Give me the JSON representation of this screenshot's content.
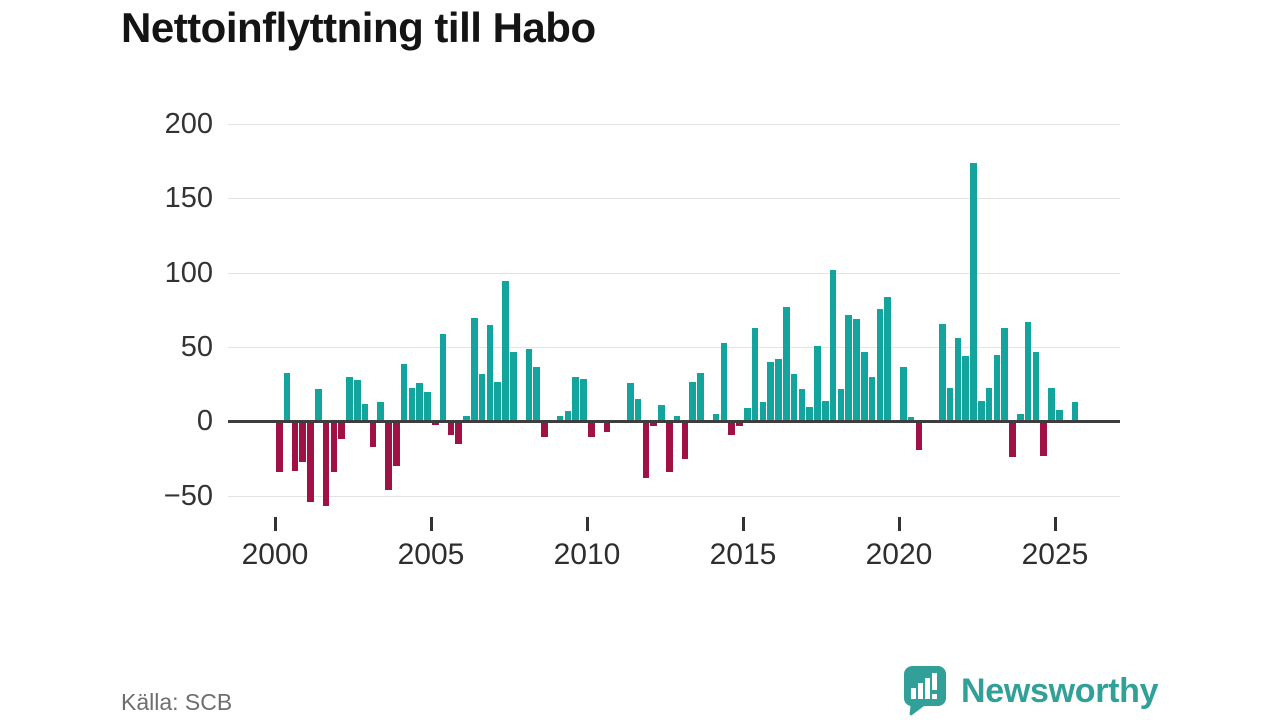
{
  "title": "Nettoinflyttning till Habo",
  "source": "Källa: SCB",
  "logo": {
    "text": "Newsworthy",
    "icon": "speech-bubble-bar-chart-icon"
  },
  "colors": {
    "positive_bar": "#13a49d",
    "negative_bar": "#a01146",
    "gridline": "#e3e3e3",
    "zero_line": "#3d3d3d",
    "axis_text": "#333333",
    "title_text": "#141414",
    "source_text": "#6e6e6e",
    "logo_teal": "#31a098"
  },
  "chart_data": {
    "type": "bar",
    "title": "Nettoinflyttning till Habo",
    "frequency": "quarterly",
    "start": "2000 Q1",
    "end": "2025 Q3",
    "x_tick_labels": [
      "2000",
      "2005",
      "2010",
      "2015",
      "2020",
      "2025"
    ],
    "y_tick_labels": [
      "200",
      "150",
      "100",
      "50",
      "0",
      "−50"
    ],
    "y_ticks": [
      200,
      150,
      100,
      50,
      0,
      -50
    ],
    "ylim": [
      -60,
      210
    ],
    "grid": true,
    "legend": "none",
    "values": [
      -34,
      33,
      -33,
      -27,
      -54,
      22,
      -57,
      -34,
      -12,
      30,
      28,
      12,
      -17,
      13,
      -46,
      -30,
      39,
      23,
      26,
      20,
      -2,
      59,
      -9,
      -15,
      4,
      70,
      32,
      65,
      27,
      95,
      47,
      0,
      49,
      37,
      -10,
      0,
      4,
      7,
      30,
      29,
      -10,
      0,
      -7,
      0,
      0,
      26,
      15,
      -38,
      -3,
      11,
      -34,
      4,
      -25,
      27,
      33,
      0,
      5,
      53,
      -9,
      -3,
      9,
      63,
      13,
      40,
      42,
      77,
      32,
      22,
      10,
      51,
      14,
      102,
      22,
      72,
      69,
      47,
      30,
      76,
      84,
      0,
      37,
      3,
      -19,
      0,
      0,
      66,
      23,
      56,
      44,
      174,
      14,
      23,
      45,
      63,
      -24,
      5,
      67,
      47,
      -23,
      23,
      8,
      0,
      13
    ]
  }
}
